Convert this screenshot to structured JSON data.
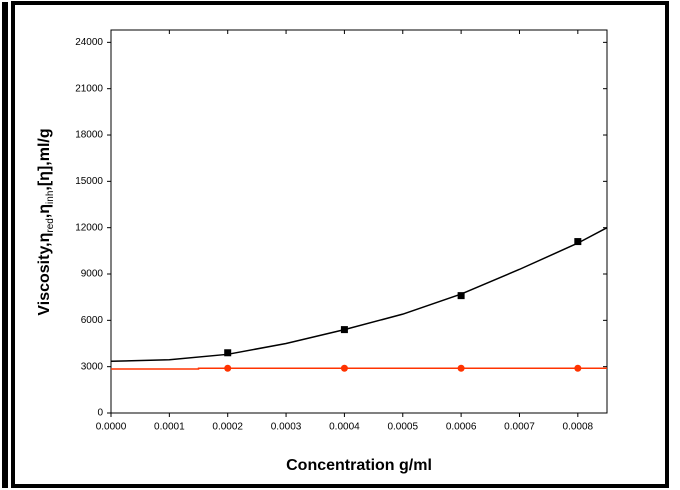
{
  "chart_data": {
    "type": "scatter",
    "x_label": "Concentration g/ml",
    "y_label_parts": [
      "Viscosity,η",
      "red",
      ",η",
      "inh",
      ",[η],ml/g"
    ],
    "xlim": [
      0,
      0.00085
    ],
    "ylim": [
      0,
      24800
    ],
    "xticks": [
      {
        "value": 0,
        "label": "0.0000"
      },
      {
        "value": 0.0001,
        "label": "0.0001"
      },
      {
        "value": 0.0002,
        "label": "0.0002"
      },
      {
        "value": 0.0003,
        "label": "0.0003"
      },
      {
        "value": 0.0004,
        "label": "0.0004"
      },
      {
        "value": 0.0005,
        "label": "0.0005"
      },
      {
        "value": 0.0006,
        "label": "0.0006"
      },
      {
        "value": 0.0007,
        "label": "0.0007"
      },
      {
        "value": 0.0008,
        "label": "0.0008"
      }
    ],
    "yticks": [
      0,
      3000,
      6000,
      9000,
      12000,
      15000,
      18000,
      21000,
      24000
    ],
    "series": [
      {
        "style": "line",
        "color": "#000000",
        "x": [
          0,
          0.0001,
          0.0002,
          0.0003,
          0.0004,
          0.0005,
          0.0006,
          0.0007,
          0.0008,
          0.00085
        ],
        "values": [
          3350,
          3450,
          3800,
          4500,
          5400,
          6400,
          7700,
          9300,
          11000,
          12000
        ]
      },
      {
        "style": "line",
        "color": "#ff3300",
        "x": [
          0,
          0.00015,
          0.00015,
          0.00085
        ],
        "values": [
          2850,
          2850,
          2900,
          2900
        ]
      },
      {
        "style": "square",
        "color": "#000000",
        "x": [
          0.0002,
          0.0004,
          0.0006,
          0.0008
        ],
        "values": [
          3900,
          5400,
          7600,
          11100
        ]
      },
      {
        "style": "circle",
        "color": "#ff3300",
        "x": [
          0.0002,
          0.0004,
          0.0006,
          0.0008
        ],
        "values": [
          2900,
          2900,
          2900,
          2900
        ]
      }
    ]
  }
}
